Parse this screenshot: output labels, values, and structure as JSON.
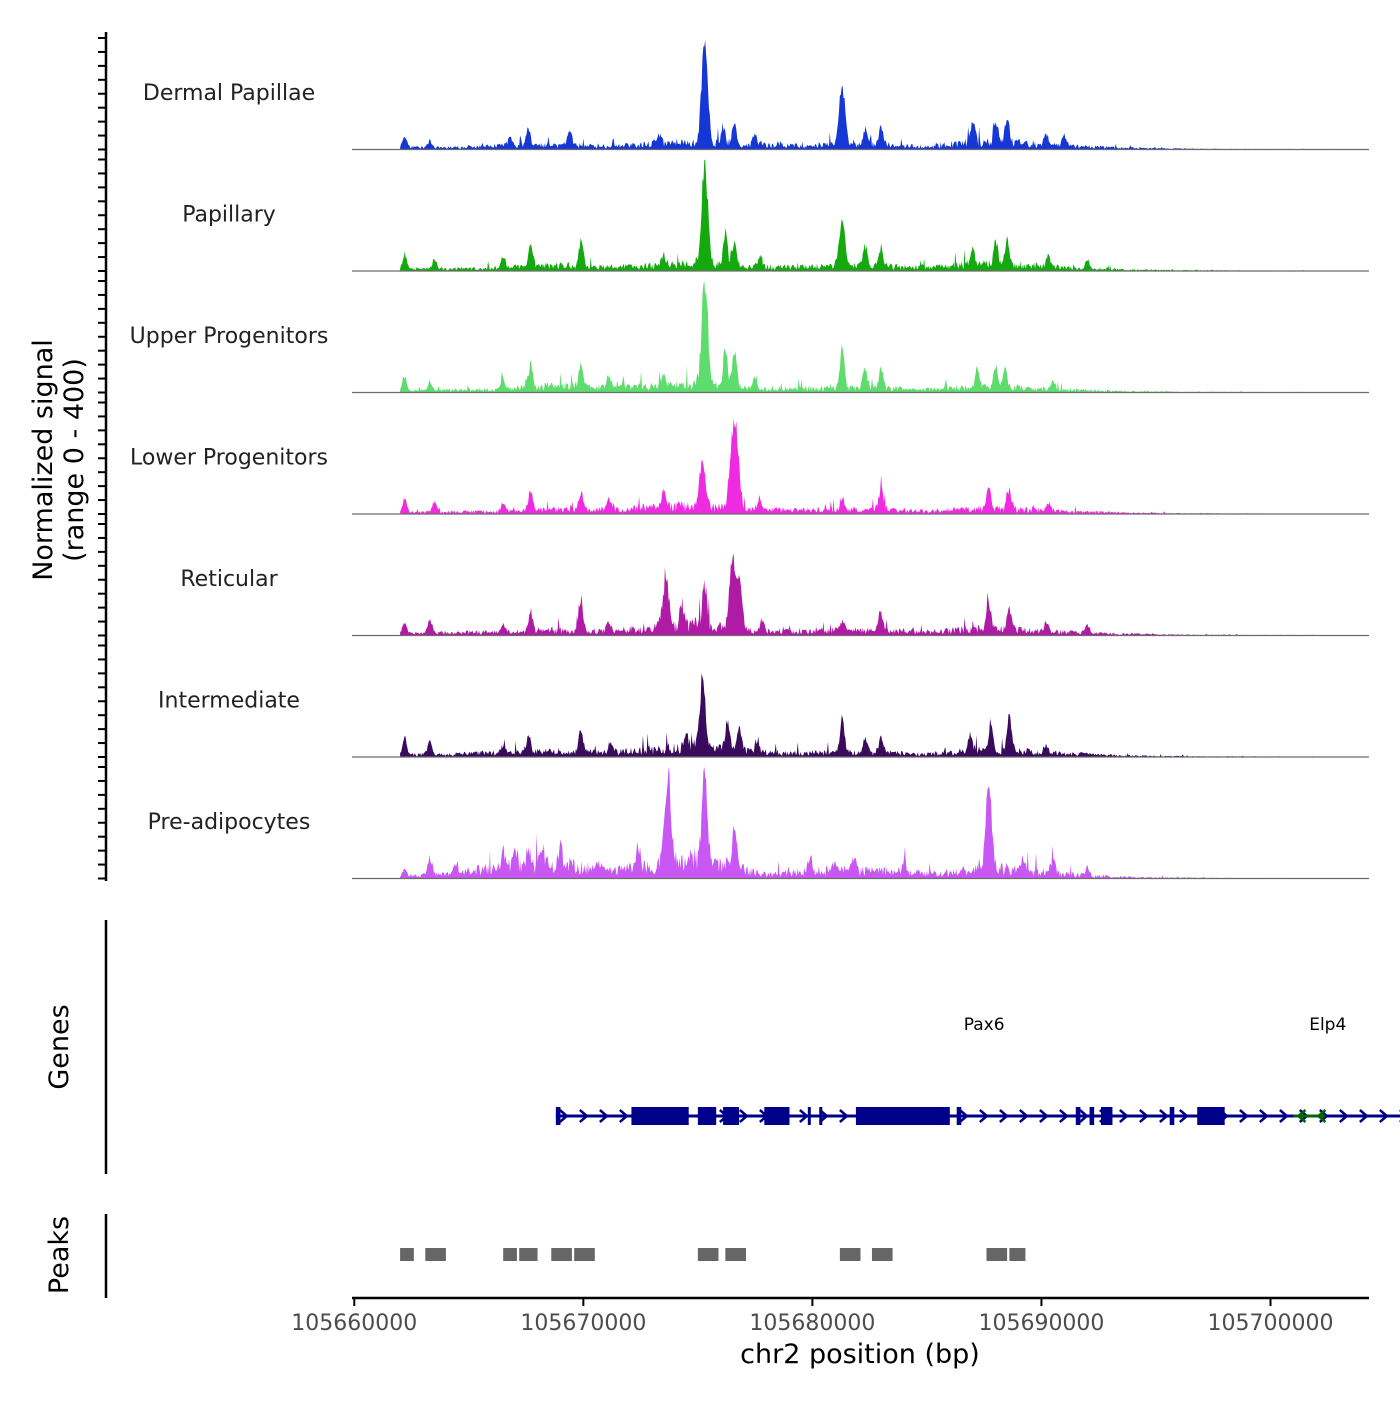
{
  "chart_data": {
    "type": "area",
    "subtype": "coverage-track",
    "y_axis_title_line1": "Normalized signal",
    "y_axis_title_line2": "(range 0 - 400)",
    "ylim": [
      0,
      400
    ],
    "xlabel": "chr2 position (bp)",
    "xlim": [
      105659900,
      105704300
    ],
    "x_ticks": [
      {
        "value": 105660000,
        "label": "105660000"
      },
      {
        "value": 105670000,
        "label": "105670000"
      },
      {
        "value": 105680000,
        "label": "105680000"
      },
      {
        "value": 105690000,
        "label": "105690000"
      },
      {
        "value": 105700000,
        "label": "105700000"
      }
    ],
    "genes_label": "Genes",
    "peaks_label": "Peaks",
    "signal_start": 105662000,
    "signal_end": 105702600,
    "series": [
      {
        "name": "Dermal Papillae",
        "color": "#1537d6",
        "background": [
          [
            105662100,
            8
          ],
          [
            105664000,
            7
          ],
          [
            105666800,
            14
          ],
          [
            105669000,
            16
          ],
          [
            105671000,
            12
          ],
          [
            105673500,
            20
          ],
          [
            105675000,
            26
          ],
          [
            105677000,
            16
          ],
          [
            105679500,
            14
          ],
          [
            105681000,
            18
          ],
          [
            105683000,
            16
          ],
          [
            105685000,
            10
          ],
          [
            105687000,
            28
          ],
          [
            105689000,
            24
          ],
          [
            105691000,
            12
          ],
          [
            105694000,
            5
          ],
          [
            105697000,
            2
          ],
          [
            105702000,
            1
          ]
        ],
        "peaks": [
          [
            105662200,
            40
          ],
          [
            105663300,
            25
          ],
          [
            105666800,
            30
          ],
          [
            105667600,
            60
          ],
          [
            105669400,
            60
          ],
          [
            105673300,
            40
          ],
          [
            105675300,
            400
          ],
          [
            105676100,
            60
          ],
          [
            105676600,
            80
          ],
          [
            105677500,
            40
          ],
          [
            105681300,
            210
          ],
          [
            105682300,
            60
          ],
          [
            105683000,
            70
          ],
          [
            105687000,
            70
          ],
          [
            105688000,
            80
          ],
          [
            105688500,
            80
          ],
          [
            105690200,
            40
          ],
          [
            105691000,
            40
          ]
        ]
      },
      {
        "name": "Papillary",
        "color": "#14aa0f",
        "background": [
          [
            105662100,
            8
          ],
          [
            105664000,
            8
          ],
          [
            105666500,
            12
          ],
          [
            105669000,
            20
          ],
          [
            105671000,
            14
          ],
          [
            105673500,
            20
          ],
          [
            105675000,
            30
          ],
          [
            105677000,
            16
          ],
          [
            105679500,
            14
          ],
          [
            105681000,
            18
          ],
          [
            105683000,
            18
          ],
          [
            105685000,
            12
          ],
          [
            105687000,
            24
          ],
          [
            105689000,
            24
          ],
          [
            105691000,
            12
          ],
          [
            105694000,
            4
          ],
          [
            105697000,
            2
          ],
          [
            105702000,
            1
          ]
        ],
        "peaks": [
          [
            105662200,
            50
          ],
          [
            105663500,
            35
          ],
          [
            105666500,
            40
          ],
          [
            105667700,
            80
          ],
          [
            105669900,
            90
          ],
          [
            105673500,
            45
          ],
          [
            105675300,
            370
          ],
          [
            105676200,
            120
          ],
          [
            105676600,
            90
          ],
          [
            105677700,
            40
          ],
          [
            105681300,
            160
          ],
          [
            105682300,
            70
          ],
          [
            105683000,
            70
          ],
          [
            105687000,
            60
          ],
          [
            105688000,
            80
          ],
          [
            105688500,
            80
          ],
          [
            105690300,
            40
          ],
          [
            105692000,
            30
          ]
        ]
      },
      {
        "name": "Upper Progenitors",
        "color": "#5fdc6e",
        "background": [
          [
            105662100,
            6
          ],
          [
            105664000,
            8
          ],
          [
            105666500,
            12
          ],
          [
            105669000,
            24
          ],
          [
            105671000,
            18
          ],
          [
            105673500,
            24
          ],
          [
            105675000,
            30
          ],
          [
            105677000,
            16
          ],
          [
            105679500,
            14
          ],
          [
            105681000,
            16
          ],
          [
            105683000,
            16
          ],
          [
            105685000,
            10
          ],
          [
            105687000,
            20
          ],
          [
            105689000,
            18
          ],
          [
            105691000,
            10
          ],
          [
            105694000,
            4
          ],
          [
            105697000,
            2
          ],
          [
            105702000,
            1
          ]
        ],
        "peaks": [
          [
            105662200,
            50
          ],
          [
            105663300,
            30
          ],
          [
            105666500,
            40
          ],
          [
            105667700,
            90
          ],
          [
            105669900,
            80
          ],
          [
            105671100,
            40
          ],
          [
            105673500,
            45
          ],
          [
            105675300,
            400
          ],
          [
            105676200,
            140
          ],
          [
            105676600,
            140
          ],
          [
            105677500,
            40
          ],
          [
            105681300,
            150
          ],
          [
            105682300,
            70
          ],
          [
            105683000,
            70
          ],
          [
            105687200,
            60
          ],
          [
            105688000,
            80
          ],
          [
            105688400,
            80
          ],
          [
            105690500,
            30
          ]
        ]
      },
      {
        "name": "Lower Progenitors",
        "color": "#ee2be0",
        "background": [
          [
            105662100,
            6
          ],
          [
            105664000,
            8
          ],
          [
            105666500,
            10
          ],
          [
            105669000,
            16
          ],
          [
            105671000,
            14
          ],
          [
            105673000,
            24
          ],
          [
            105675000,
            30
          ],
          [
            105677000,
            16
          ],
          [
            105679500,
            14
          ],
          [
            105681000,
            16
          ],
          [
            105683000,
            16
          ],
          [
            105685000,
            10
          ],
          [
            105687000,
            18
          ],
          [
            105689000,
            18
          ],
          [
            105691000,
            10
          ],
          [
            105694000,
            4
          ],
          [
            105697000,
            2
          ],
          [
            105702000,
            1
          ]
        ],
        "peaks": [
          [
            105662200,
            50
          ],
          [
            105663500,
            35
          ],
          [
            105666500,
            30
          ],
          [
            105667700,
            70
          ],
          [
            105669900,
            60
          ],
          [
            105671100,
            40
          ],
          [
            105673500,
            60
          ],
          [
            105675200,
            170
          ],
          [
            105676500,
            210
          ],
          [
            105676700,
            200
          ],
          [
            105677700,
            40
          ],
          [
            105681300,
            40
          ],
          [
            105683000,
            80
          ],
          [
            105687700,
            80
          ],
          [
            105688600,
            70
          ],
          [
            105690300,
            30
          ]
        ]
      },
      {
        "name": "Reticular",
        "color": "#b01ba6",
        "background": [
          [
            105662100,
            8
          ],
          [
            105664000,
            10
          ],
          [
            105666500,
            12
          ],
          [
            105669000,
            20
          ],
          [
            105671000,
            16
          ],
          [
            105673000,
            30
          ],
          [
            105675000,
            40
          ],
          [
            105677000,
            18
          ],
          [
            105679500,
            14
          ],
          [
            105681000,
            18
          ],
          [
            105683000,
            18
          ],
          [
            105685000,
            12
          ],
          [
            105687000,
            24
          ],
          [
            105689000,
            20
          ],
          [
            105691000,
            12
          ],
          [
            105694000,
            5
          ],
          [
            105697000,
            2
          ],
          [
            105702000,
            1
          ]
        ],
        "peaks": [
          [
            105662200,
            40
          ],
          [
            105663300,
            50
          ],
          [
            105666500,
            30
          ],
          [
            105667700,
            70
          ],
          [
            105669900,
            100
          ],
          [
            105671100,
            30
          ],
          [
            105673600,
            170
          ],
          [
            105674300,
            70
          ],
          [
            105675300,
            150
          ],
          [
            105676500,
            220
          ],
          [
            105676800,
            170
          ],
          [
            105677800,
            40
          ],
          [
            105681300,
            40
          ],
          [
            105683000,
            60
          ],
          [
            105687700,
            90
          ],
          [
            105688600,
            80
          ],
          [
            105690200,
            30
          ],
          [
            105692000,
            30
          ]
        ]
      },
      {
        "name": "Intermediate",
        "color": "#3a0a5c",
        "background": [
          [
            105662100,
            8
          ],
          [
            105664000,
            10
          ],
          [
            105666500,
            14
          ],
          [
            105669000,
            20
          ],
          [
            105671000,
            16
          ],
          [
            105673000,
            26
          ],
          [
            105675000,
            40
          ],
          [
            105677000,
            20
          ],
          [
            105679500,
            14
          ],
          [
            105681000,
            16
          ],
          [
            105683000,
            16
          ],
          [
            105685000,
            10
          ],
          [
            105687000,
            24
          ],
          [
            105689000,
            20
          ],
          [
            105691000,
            12
          ],
          [
            105694000,
            4
          ],
          [
            105697000,
            2
          ],
          [
            105702000,
            1
          ]
        ],
        "peaks": [
          [
            105662200,
            60
          ],
          [
            105663300,
            50
          ],
          [
            105666500,
            30
          ],
          [
            105667600,
            60
          ],
          [
            105669900,
            80
          ],
          [
            105671200,
            40
          ],
          [
            105674500,
            50
          ],
          [
            105675200,
            220
          ],
          [
            105676300,
            110
          ],
          [
            105676800,
            90
          ],
          [
            105677600,
            40
          ],
          [
            105681300,
            140
          ],
          [
            105682300,
            50
          ],
          [
            105683000,
            50
          ],
          [
            105686900,
            50
          ],
          [
            105687800,
            100
          ],
          [
            105688600,
            130
          ],
          [
            105690200,
            30
          ]
        ]
      },
      {
        "name": "Pre-adipocytes",
        "color": "#c857f4",
        "background": [
          [
            105662100,
            10
          ],
          [
            105664000,
            16
          ],
          [
            105666500,
            40
          ],
          [
            105669000,
            50
          ],
          [
            105671000,
            30
          ],
          [
            105672800,
            40
          ],
          [
            105673500,
            60
          ],
          [
            105675000,
            70
          ],
          [
            105676800,
            36
          ],
          [
            105678000,
            14
          ],
          [
            105679800,
            26
          ],
          [
            105681500,
            30
          ],
          [
            105683500,
            24
          ],
          [
            105685500,
            16
          ],
          [
            105687000,
            30
          ],
          [
            105688500,
            34
          ],
          [
            105690500,
            20
          ],
          [
            105692000,
            10
          ],
          [
            105694000,
            4
          ],
          [
            105697000,
            2
          ],
          [
            105702000,
            1
          ]
        ],
        "peaks": [
          [
            105662200,
            20
          ],
          [
            105663300,
            60
          ],
          [
            105664400,
            30
          ],
          [
            105666500,
            60
          ],
          [
            105667000,
            80
          ],
          [
            105667600,
            60
          ],
          [
            105668200,
            70
          ],
          [
            105669000,
            60
          ],
          [
            105670600,
            40
          ],
          [
            105672400,
            70
          ],
          [
            105673700,
            320
          ],
          [
            105675300,
            290
          ],
          [
            105676600,
            150
          ],
          [
            105679900,
            50
          ],
          [
            105681000,
            40
          ],
          [
            105681800,
            50
          ],
          [
            105684000,
            40
          ],
          [
            105687700,
            290
          ],
          [
            105689200,
            40
          ],
          [
            105690500,
            50
          ],
          [
            105692000,
            30
          ]
        ]
      }
    ],
    "genes": [
      {
        "name": "Pax6",
        "label": "Pax6",
        "strand": "+",
        "color": "#00008b",
        "start": 105668800,
        "end": 105707200,
        "exons": [
          [
            105668800,
            105669000
          ],
          [
            105672100,
            105674600
          ],
          [
            105675000,
            105675800
          ],
          [
            105676100,
            105676800
          ],
          [
            105677900,
            105679000
          ],
          [
            105679800,
            105679900
          ],
          [
            105680300,
            105680400
          ],
          [
            105681900,
            105686000
          ],
          [
            105686300,
            105686500
          ],
          [
            105691500,
            105691700
          ],
          [
            105692100,
            105692300
          ],
          [
            105692600,
            105693100
          ],
          [
            105695600,
            105695800
          ],
          [
            105696800,
            105698000
          ]
        ]
      },
      {
        "name": "Elp4",
        "label": "Elp4",
        "strand": "-",
        "color": "#006400",
        "start": 105701000,
        "end": 105702400,
        "exons": []
      }
    ],
    "peaks": [
      [
        105662000,
        105662600
      ],
      [
        105663100,
        105664000
      ],
      [
        105666500,
        105667100
      ],
      [
        105667200,
        105668000
      ],
      [
        105668600,
        105669500
      ],
      [
        105669600,
        105670500
      ],
      [
        105675000,
        105675900
      ],
      [
        105676200,
        105677100
      ],
      [
        105681200,
        105682100
      ],
      [
        105682600,
        105683500
      ],
      [
        105687600,
        105688500
      ],
      [
        105688600,
        105689300
      ]
    ]
  }
}
